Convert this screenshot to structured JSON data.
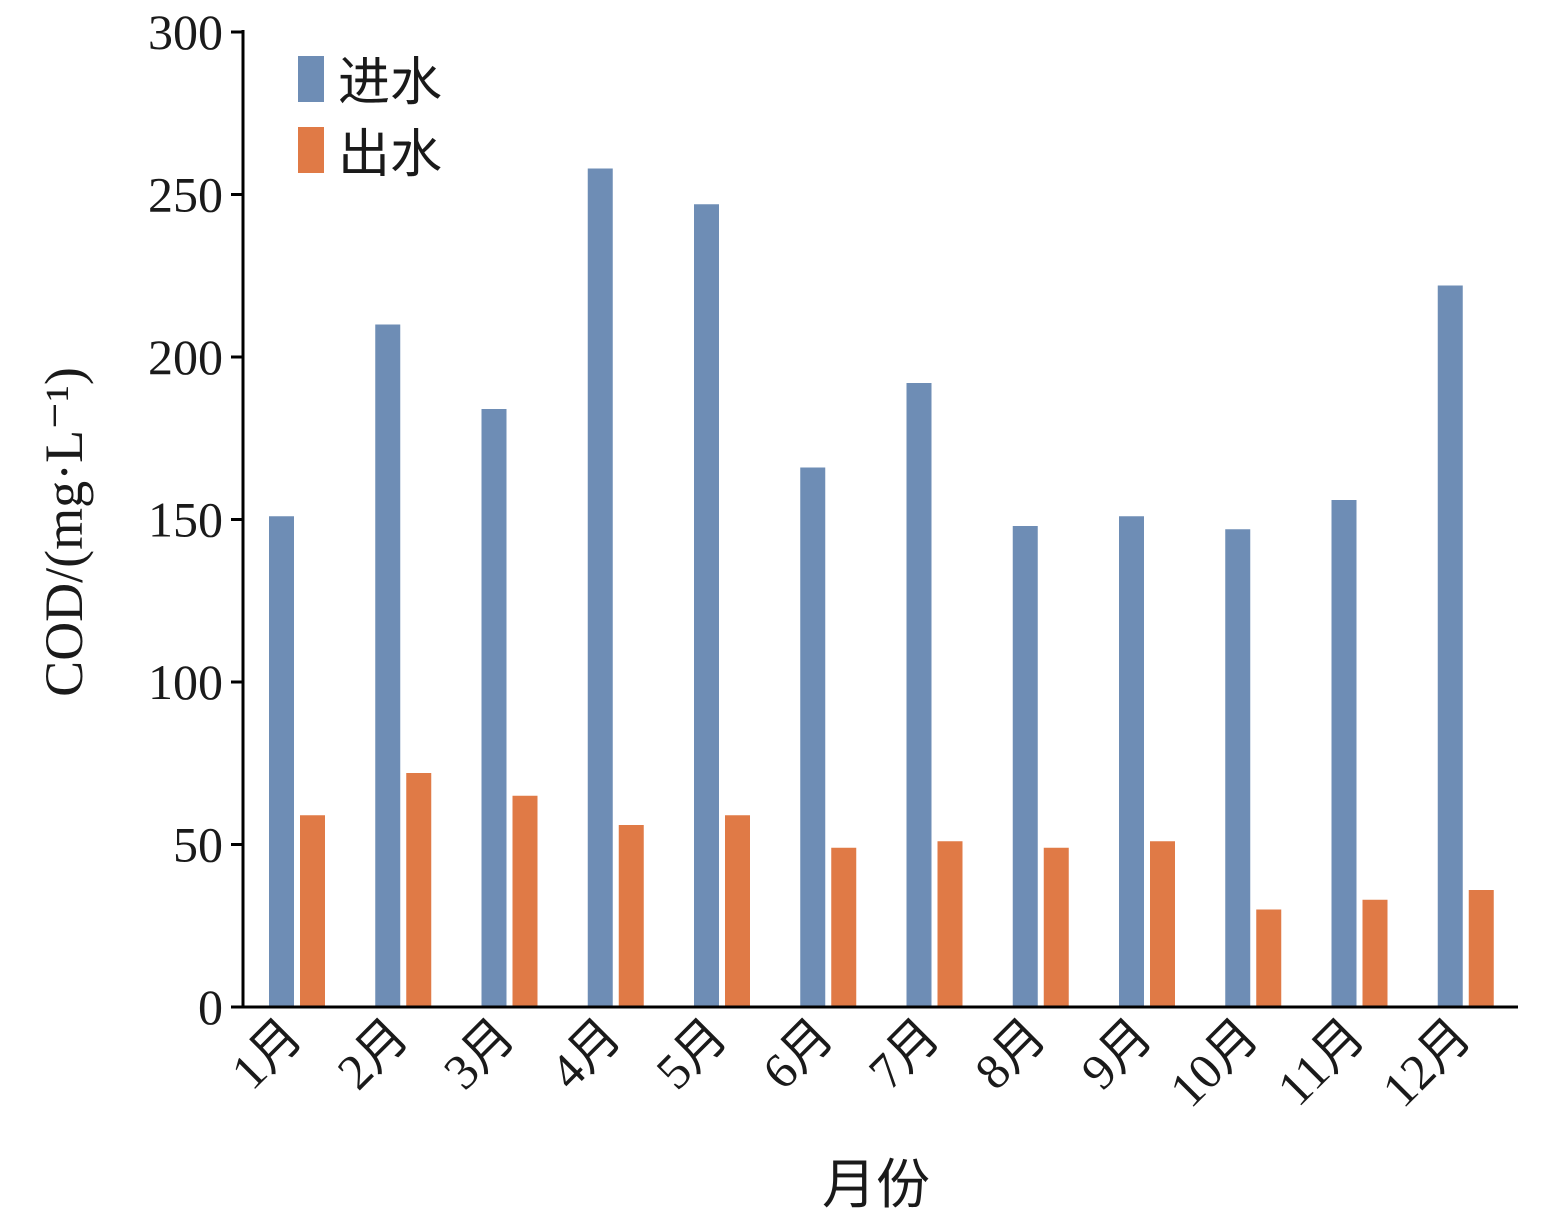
{
  "chart_data": {
    "type": "bar",
    "categories": [
      "1月",
      "2月",
      "3月",
      "4月",
      "5月",
      "6月",
      "7月",
      "8月",
      "9月",
      "10月",
      "11月",
      "12月"
    ],
    "series": [
      {
        "name": "进水",
        "color": "#6E8DB5",
        "values": [
          151,
          210,
          184,
          258,
          247,
          166,
          192,
          148,
          151,
          147,
          156,
          222
        ]
      },
      {
        "name": "出水",
        "color": "#E07A46",
        "values": [
          59,
          72,
          65,
          56,
          59,
          49,
          51,
          49,
          51,
          30,
          33,
          36
        ]
      }
    ],
    "title": "",
    "xlabel": "月份",
    "ylabel": "COD/(mg·L⁻¹)",
    "ylim": [
      0,
      300
    ],
    "yticks": [
      0,
      50,
      100,
      150,
      200,
      250,
      300
    ],
    "grid": false,
    "legend_position": "top-left"
  }
}
